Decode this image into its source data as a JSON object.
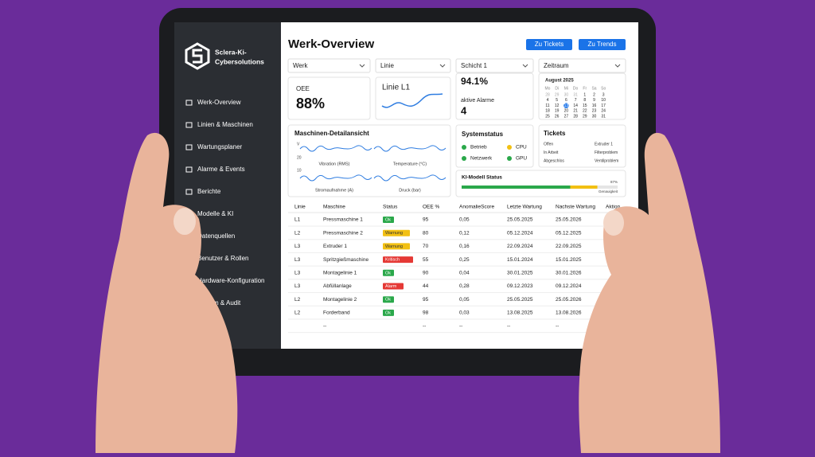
{
  "sidebar": {
    "brand": [
      "Sclera-Ki-",
      "Cybersolutions"
    ],
    "nav": [
      "Werk-Overview",
      "Linien & Maschinen",
      "Wartungsplaner",
      "Alarme & Events",
      "Berichte",
      "Modelle & KI",
      "Datenquellen",
      "Benutzer & Rollen",
      "Hardware-Konfiguration",
      "System & Audit"
    ]
  },
  "header": {
    "title": "Werk-Overview",
    "buttons": [
      "Zu Tickets",
      "Zu Trends"
    ]
  },
  "filters": [
    "Werk",
    "Linie",
    "Schicht 1",
    "Zeitraum"
  ],
  "cards": {
    "oee_label": "OEE",
    "oee_value": "88%",
    "line": "Linie L1",
    "availability": "94.1%",
    "alarms_label": "aktive Alarme",
    "alarms_value": "4"
  },
  "calendar": {
    "month": "August 2025",
    "weekdays": [
      "Mo",
      "Di",
      "Mi",
      "Do",
      "Fr",
      "Sa",
      "So"
    ],
    "days": [
      "28",
      "29",
      "30",
      "31",
      "1",
      "2",
      "3",
      "4",
      "5",
      "6",
      "7",
      "8",
      "9",
      "10",
      "11",
      "12",
      "13",
      "14",
      "15",
      "16",
      "17",
      "18",
      "19",
      "20",
      "21",
      "22",
      "23",
      "24",
      "25",
      "26",
      "27",
      "28",
      "29",
      "30",
      "31"
    ],
    "selected": "13"
  },
  "machine_detail": {
    "title": "Maschinen-Detailansicht",
    "axis": [
      "V",
      "20",
      "10"
    ],
    "charts": [
      "Vibration (RMS)",
      "Temperature (°C)",
      "Stromaufnahme (A)",
      "Druck (bar)"
    ]
  },
  "system_status": {
    "title": "Systemstatus",
    "items": [
      "Betrieb",
      "CPU",
      "Netzwerk",
      "GPU"
    ]
  },
  "tickets": {
    "title": "Tickets",
    "rows": [
      [
        "Offen",
        "Extruder 1"
      ],
      [
        "In Arbeit",
        "Filterproblem"
      ],
      [
        "Abgeschlos",
        "Ventilproblem"
      ]
    ]
  },
  "ki_model": {
    "title": "KI-Modell Status",
    "accuracy": {
      "value": 87,
      "label": "87%"
    },
    "accuracy_label": "Genauigkeit"
  },
  "table": {
    "headers": [
      "Linie",
      "Maschine",
      "Status",
      "OEE %",
      "AnomalieScore",
      "Letzte Wartung",
      "Nachste Wartung",
      "Aktion"
    ],
    "rows": [
      [
        "L1",
        "Pressmaschine 1",
        "Ok",
        "95",
        "0,05",
        "25.05.2025",
        "25.05.2026"
      ],
      [
        "L2",
        "Pressmaschine 2",
        "Warnung",
        "80",
        "0,12",
        "05.12.2024",
        "05.12.2025"
      ],
      [
        "L3",
        "Extruder 1",
        "Warnung",
        "70",
        "0,16",
        "22.09.2024",
        "22.09.2025"
      ],
      [
        "L3",
        "Spritzgießmaschine",
        "Kritisch",
        "55",
        "0,25",
        "15.01.2024",
        "15.01.2025"
      ],
      [
        "L3",
        "Montagelinie 1",
        "Ok",
        "90",
        "0,04",
        "30.01.2025",
        "30.01.2026"
      ],
      [
        "L3",
        "Abfüllanlage",
        "Alarm",
        "44",
        "0,28",
        "09.12.2023",
        "09.12.2024"
      ],
      [
        "L2",
        "Montagelinie 2",
        "Ok",
        "95",
        "0,05",
        "25.05.2025",
        "25.05.2026"
      ],
      [
        "L2",
        "Forderband",
        "Ok",
        "98",
        "0,03",
        "13.08.2025",
        "13.08.2026"
      ],
      [
        "",
        "--",
        "",
        "--",
        "--",
        "--",
        "--"
      ]
    ]
  }
}
